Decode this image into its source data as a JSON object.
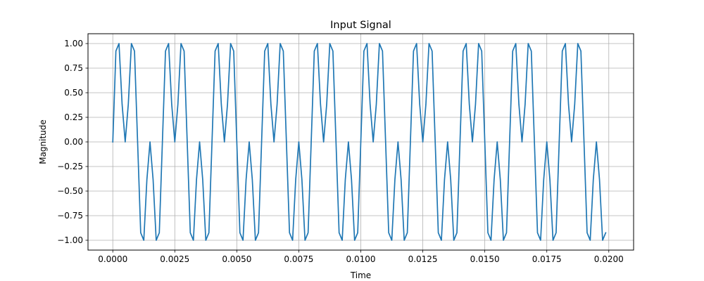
{
  "chart_data": {
    "type": "line",
    "title": "Input Signal",
    "xlabel": "Time",
    "ylabel": "Magnitude",
    "xlim": [
      -0.001,
      0.021
    ],
    "ylim": [
      -1.1,
      1.1
    ],
    "grid": true,
    "legend": "none",
    "x_ticks": [
      0.0,
      0.0025,
      0.005,
      0.0075,
      0.01,
      0.0125,
      0.015,
      0.0175,
      0.02
    ],
    "x_tick_labels": [
      "0.0000",
      "0.0025",
      "0.0050",
      "0.0075",
      "0.0100",
      "0.0125",
      "0.0150",
      "0.0175",
      "0.0200"
    ],
    "y_ticks": [
      1.0,
      0.75,
      0.5,
      0.25,
      0.0,
      -0.25,
      -0.5,
      -0.75,
      -1.0
    ],
    "y_tick_labels": [
      "1.00",
      "0.75",
      "0.50",
      "0.25",
      "0.00",
      "−0.25",
      "−0.50",
      "−0.75",
      "−1.00"
    ],
    "series": [
      {
        "color": "#1f77b4",
        "x_start": 0.0,
        "x_step": 0.000125,
        "values": [
          0.0,
          0.924,
          1.0,
          0.383,
          0.0,
          0.383,
          1.0,
          0.924,
          0.0,
          -0.924,
          -1.0,
          -0.383,
          0.0,
          -0.383,
          -1.0,
          -0.924,
          0.0,
          0.924,
          1.0,
          0.383,
          0.0,
          0.383,
          1.0,
          0.924,
          0.0,
          -0.924,
          -1.0,
          -0.383,
          0.0,
          -0.383,
          -1.0,
          -0.924,
          0.0,
          0.924,
          1.0,
          0.383,
          0.0,
          0.383,
          1.0,
          0.924,
          0.0,
          -0.924,
          -1.0,
          -0.383,
          0.0,
          -0.383,
          -1.0,
          -0.924,
          0.0,
          0.924,
          1.0,
          0.383,
          0.0,
          0.383,
          1.0,
          0.924,
          0.0,
          -0.924,
          -1.0,
          -0.383,
          0.0,
          -0.383,
          -1.0,
          -0.924,
          0.0,
          0.924,
          1.0,
          0.383,
          0.0,
          0.383,
          1.0,
          0.924,
          0.0,
          -0.924,
          -1.0,
          -0.383,
          0.0,
          -0.383,
          -1.0,
          -0.924,
          0.0,
          0.924,
          1.0,
          0.383,
          0.0,
          0.383,
          1.0,
          0.924,
          0.0,
          -0.924,
          -1.0,
          -0.383,
          0.0,
          -0.383,
          -1.0,
          -0.924,
          0.0,
          0.924,
          1.0,
          0.383,
          0.0,
          0.383,
          1.0,
          0.924,
          0.0,
          -0.924,
          -1.0,
          -0.383,
          0.0,
          -0.383,
          -1.0,
          -0.924,
          0.0,
          0.924,
          1.0,
          0.383,
          0.0,
          0.383,
          1.0,
          0.924,
          0.0,
          -0.924,
          -1.0,
          -0.383,
          0.0,
          -0.383,
          -1.0,
          -0.924,
          0.0,
          0.924,
          1.0,
          0.383,
          0.0,
          0.383,
          1.0,
          0.924,
          0.0,
          -0.924,
          -1.0,
          -0.383,
          0.0,
          -0.383,
          -1.0,
          -0.924,
          0.0,
          0.924,
          1.0,
          0.383,
          0.0,
          0.383,
          1.0,
          0.924,
          0.0,
          -0.924,
          -1.0,
          -0.383,
          0.0,
          -0.383,
          -1.0,
          -0.924
        ]
      }
    ]
  }
}
